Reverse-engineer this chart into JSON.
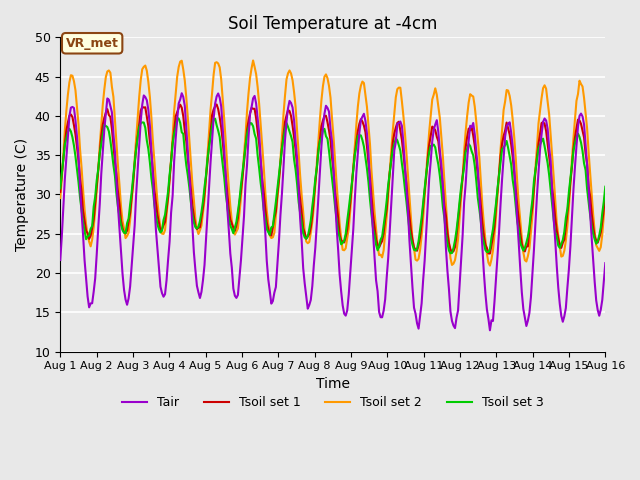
{
  "title": "Soil Temperature at -4cm",
  "xlabel": "Time",
  "ylabel": "Temperature (C)",
  "ylim": [
    10,
    50
  ],
  "xlim": [
    0,
    360
  ],
  "bg_color": "#e8e8e8",
  "plot_bg_color": "#e8e8e8",
  "grid_color": "white",
  "annotation_text": "VR_met",
  "annotation_bg": "lightyellow",
  "annotation_border": "#8B4513",
  "line_colors": {
    "Tair": "#9900cc",
    "Tsoil_set1": "#cc0000",
    "Tsoil_set2": "#ff9900",
    "Tsoil_set3": "#00cc00"
  },
  "line_widths": {
    "Tair": 1.5,
    "Tsoil_set1": 1.5,
    "Tsoil_set2": 1.5,
    "Tsoil_set3": 1.5
  },
  "legend_labels": [
    "Tair",
    "Tsoil set 1",
    "Tsoil set 2",
    "Tsoil set 3"
  ],
  "xtick_labels": [
    "Aug 1",
    "Aug 2",
    "Aug 3",
    "Aug 4",
    "Aug 5",
    "Aug 6",
    "Aug 7",
    "Aug 8",
    "Aug 9",
    "Aug 10",
    "Aug 11",
    "Aug 12",
    "Aug 13",
    "Aug 14",
    "Aug 15",
    "Aug 16"
  ],
  "xtick_positions": [
    0,
    24,
    48,
    72,
    96,
    120,
    144,
    168,
    192,
    216,
    240,
    264,
    288,
    312,
    336,
    360
  ],
  "ytick_labels": [
    "10",
    "15",
    "20",
    "25",
    "30",
    "35",
    "40",
    "45",
    "50"
  ],
  "ytick_positions": [
    10,
    15,
    20,
    25,
    30,
    35,
    40,
    45,
    50
  ]
}
